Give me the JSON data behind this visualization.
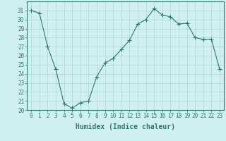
{
  "x": [
    0,
    1,
    2,
    3,
    4,
    5,
    6,
    7,
    8,
    9,
    10,
    11,
    12,
    13,
    14,
    15,
    16,
    17,
    18,
    19,
    20,
    21,
    22,
    23
  ],
  "y": [
    31,
    30.7,
    27,
    24.5,
    20.7,
    20.2,
    20.8,
    21.0,
    23.7,
    25.2,
    25.7,
    26.7,
    27.7,
    29.5,
    30.0,
    31.2,
    30.5,
    30.3,
    29.5,
    29.6,
    28.0,
    27.8,
    27.8,
    24.5
  ],
  "line_color": "#2d7a6f",
  "marker": "+",
  "marker_size": 4,
  "bg_color": "#cff0ef",
  "grid_color": "#b0dada",
  "xlabel": "Humidex (Indice chaleur)",
  "ylim": [
    20,
    32
  ],
  "xlim": [
    -0.5,
    23.5
  ],
  "yticks": [
    20,
    21,
    22,
    23,
    24,
    25,
    26,
    27,
    28,
    29,
    30,
    31
  ],
  "xticks": [
    0,
    1,
    2,
    3,
    4,
    5,
    6,
    7,
    8,
    9,
    10,
    11,
    12,
    13,
    14,
    15,
    16,
    17,
    18,
    19,
    20,
    21,
    22,
    23
  ],
  "tick_fontsize": 5.5,
  "xlabel_fontsize": 7,
  "tick_color": "#2d7a6f",
  "spine_color": "#2d7a6f"
}
